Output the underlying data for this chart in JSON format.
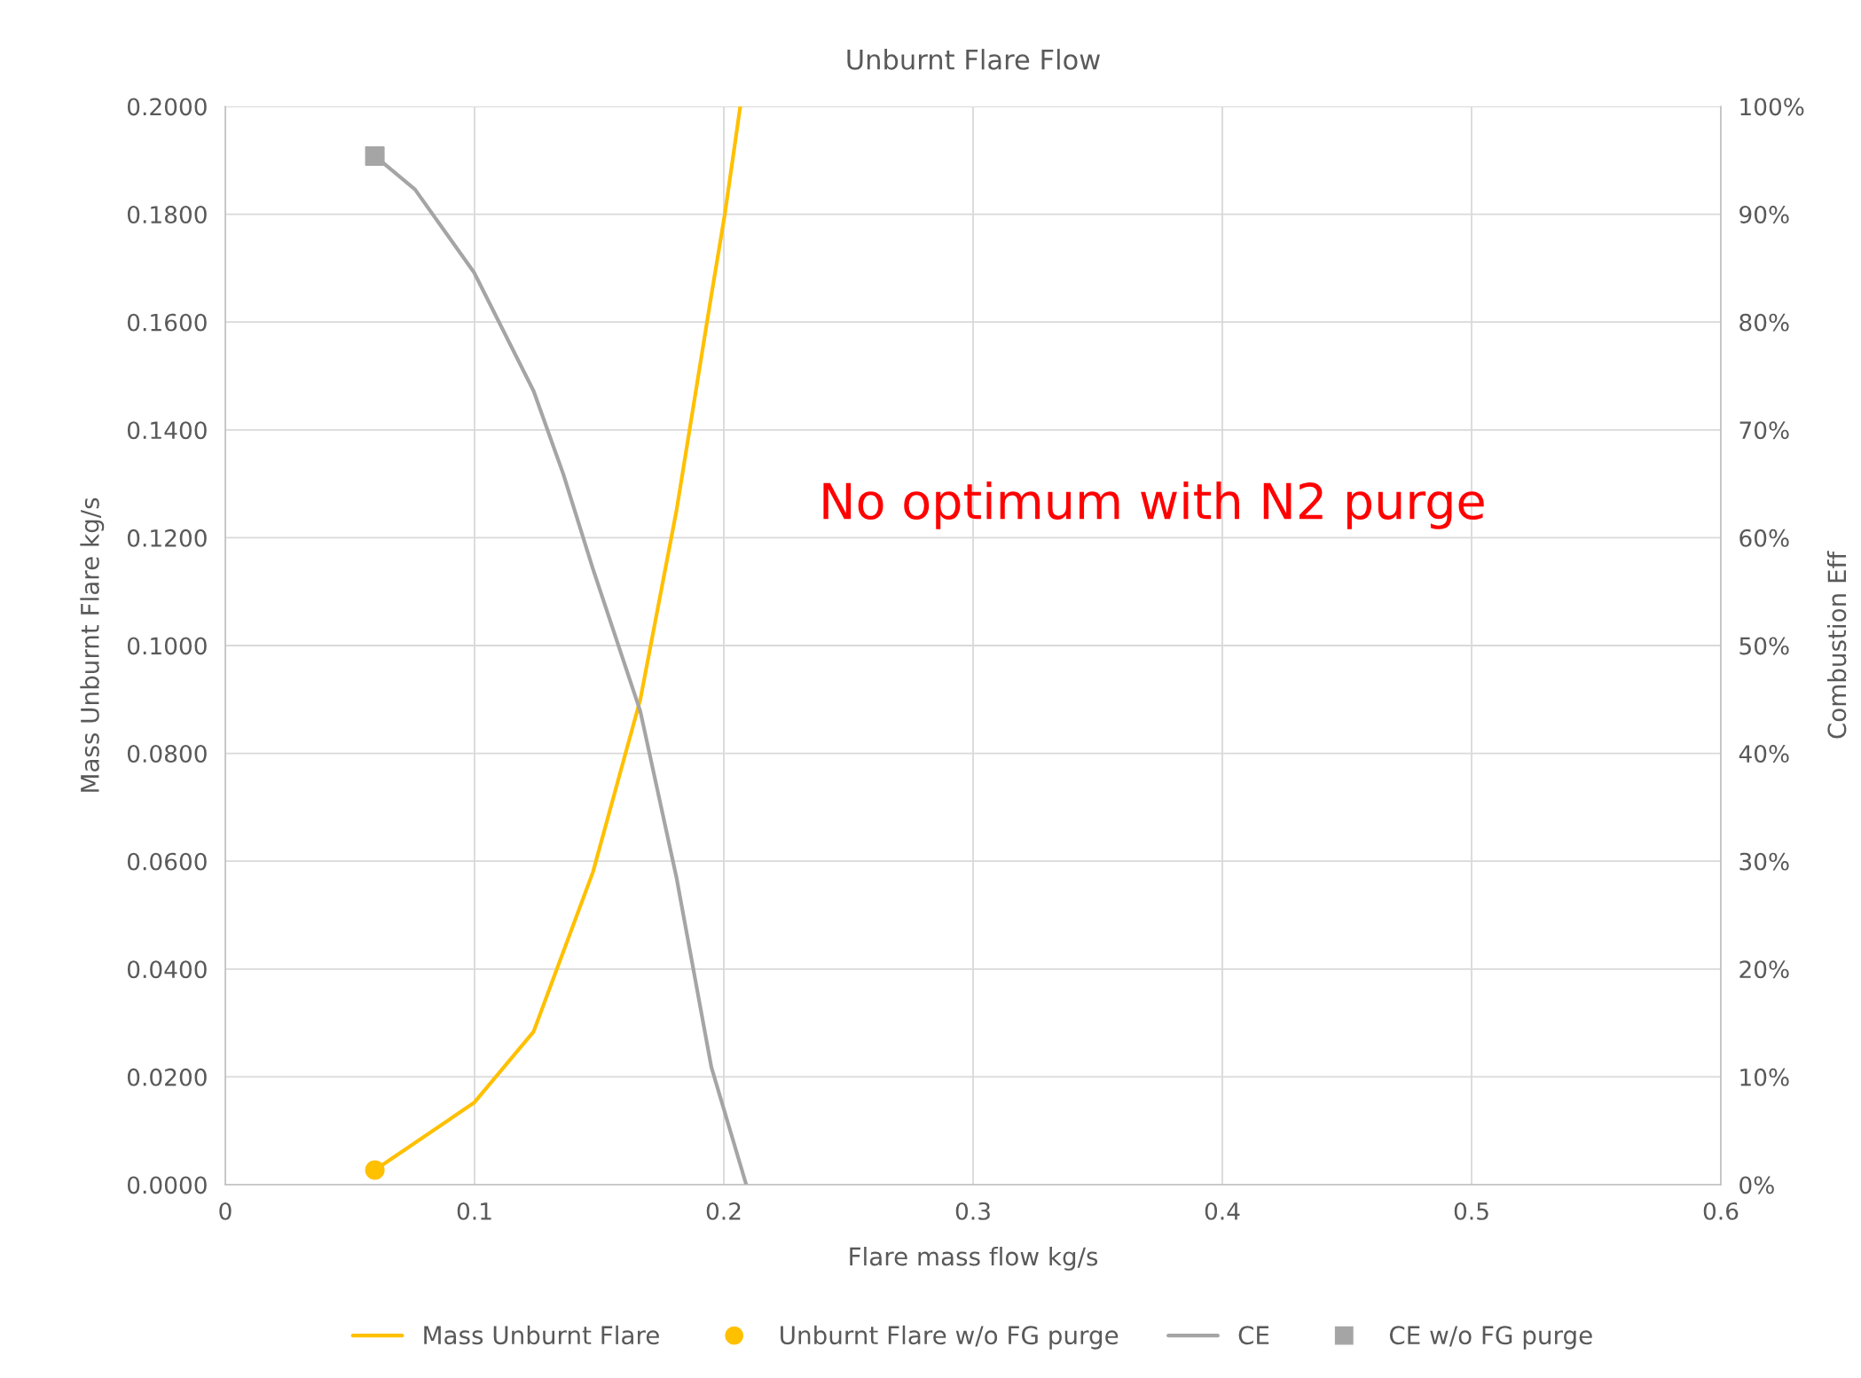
{
  "chart_data": {
    "type": "line",
    "title": "Unburnt Flare Flow",
    "xlabel": "Flare mass flow kg/s",
    "ylabel": "Mass Unburnt Flare kg/s",
    "y2label": "Combustion Eff",
    "xlim": [
      0,
      0.6
    ],
    "xticks": [
      0,
      0.1,
      0.2,
      0.3,
      0.4,
      0.5,
      0.6
    ],
    "ylim": [
      0,
      0.2
    ],
    "yticks": [
      {
        "value": 0,
        "label": "0.0000"
      },
      {
        "value": 0.02,
        "label": "0.0200"
      },
      {
        "value": 0.04,
        "label": "0.0400"
      },
      {
        "value": 0.06,
        "label": "0.0600"
      },
      {
        "value": 0.08,
        "label": "0.0800"
      },
      {
        "value": 0.1,
        "label": "0.1000"
      },
      {
        "value": 0.12,
        "label": "0.1200"
      },
      {
        "value": 0.14,
        "label": "0.1400"
      },
      {
        "value": 0.16,
        "label": "0.1600"
      },
      {
        "value": 0.18,
        "label": "0.1800"
      },
      {
        "value": 0.2,
        "label": "0.2000"
      }
    ],
    "y2lim": [
      0,
      100
    ],
    "y2ticks": [
      {
        "value": 0,
        "label": "0%"
      },
      {
        "value": 10,
        "label": "10%"
      },
      {
        "value": 20,
        "label": "20%"
      },
      {
        "value": 30,
        "label": "30%"
      },
      {
        "value": 40,
        "label": "40%"
      },
      {
        "value": 50,
        "label": "50%"
      },
      {
        "value": 60,
        "label": "60%"
      },
      {
        "value": 70,
        "label": "70%"
      },
      {
        "value": 80,
        "label": "80%"
      },
      {
        "value": 90,
        "label": "90%"
      },
      {
        "value": 100,
        "label": "100%"
      }
    ],
    "grid": true,
    "legend": "bottom",
    "annotations": [
      "No optimum with N2 purge"
    ],
    "series": [
      {
        "name": "Mass Unburnt Flare",
        "color": "#ffc000",
        "x": [
          0.06,
          0.0998,
          0.1237,
          0.1475,
          0.1665,
          0.181,
          0.195,
          0.2004,
          0.2066
        ],
        "values": [
          0.0027,
          0.0152,
          0.0284,
          0.058,
          0.09,
          0.125,
          0.165,
          0.18,
          0.2
        ]
      },
      {
        "name": "Unburnt Flare w/o FG purge",
        "type": "scatter",
        "marker": "circle",
        "color": "#ffc000",
        "x": [
          0.06
        ],
        "values": [
          0.0027
        ]
      },
      {
        "name": "CE",
        "axis": "y2",
        "color": "#a5a5a5",
        "x": [
          0.06,
          0.0761,
          0.0998,
          0.1237,
          0.1356,
          0.1475,
          0.1665,
          0.181,
          0.195,
          0.209
        ],
        "values": [
          95.4,
          92.3,
          84.6,
          73.6,
          65.9,
          57.1,
          43.9,
          28.5,
          10.9,
          0
        ]
      },
      {
        "name": "CE w/o FG purge",
        "type": "scatter",
        "marker": "square",
        "axis": "y2",
        "color": "#a5a5a5",
        "x": [
          0.06
        ],
        "values": [
          95.4
        ]
      }
    ]
  }
}
